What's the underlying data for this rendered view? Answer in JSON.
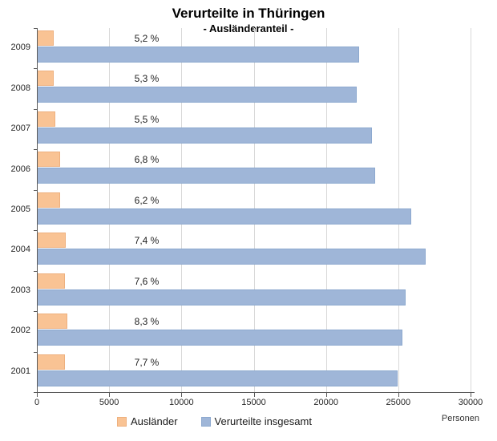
{
  "title": "Verurteilte in Thüringen",
  "subtitle": "- Ausländeranteil -",
  "axis_unit_label": "Personen",
  "colors": {
    "auslaender_fill": "#f9c394",
    "auslaender_border": "#eeb07e",
    "insgesamt_fill": "#9fb6d8",
    "insgesamt_border": "#8da9cf",
    "gridline": "#d8d8d8",
    "axis": "#595959"
  },
  "chart_data": {
    "type": "bar",
    "orientation": "horizontal",
    "title": "Verurteilte in Thüringen",
    "subtitle": "- Ausländeranteil -",
    "xlabel": "Personen",
    "xlim": [
      0,
      30000
    ],
    "xticks": [
      0,
      5000,
      10000,
      15000,
      20000,
      25000,
      30000
    ],
    "grid": true,
    "legend_position": "bottom",
    "categories": [
      "2009",
      "2008",
      "2007",
      "2006",
      "2005",
      "2004",
      "2003",
      "2002",
      "2001"
    ],
    "series": [
      {
        "name": "Ausländer",
        "values": [
          1160,
          1170,
          1280,
          1590,
          1610,
          1990,
          1940,
          2100,
          1930
        ]
      },
      {
        "name": "Verurteilte insgesamt",
        "values": [
          22300,
          22100,
          23200,
          23400,
          25900,
          26900,
          25500,
          25300,
          24950
        ]
      }
    ],
    "percent_labels": [
      "5,2 %",
      "5,3 %",
      "5,5 %",
      "6,8 %",
      "6,2 %",
      "7,4 %",
      "7,6 %",
      "8,3 %",
      "7,7 %"
    ]
  }
}
